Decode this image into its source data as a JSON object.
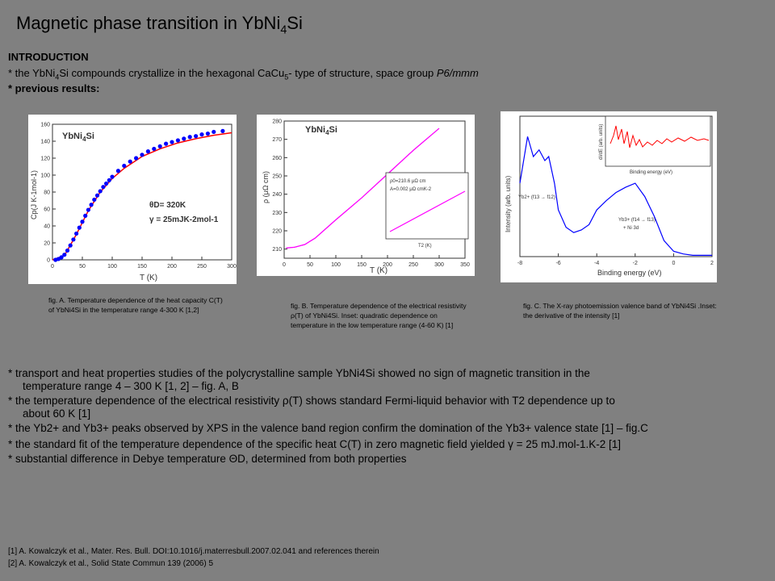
{
  "title": {
    "main": "Magnetic phase transition in YbNi",
    "sub": "4",
    "tail": "Si"
  },
  "intro": {
    "heading": "INTRODUCTION",
    "line1_a": "* the YbNi",
    "line1_sub": "4",
    "line1_b": "Si compounds crystallize in the hexagonal CaCu",
    "line1_sub2": "5",
    "line1_c": "- type of structure, space group ",
    "line1_d": "P6/mmm",
    "line2": "* previous results:"
  },
  "figA": {
    "caption": "fig. A. Temperature dependence of the heat capacity C(T) of YbNi4Si in the temperature range 4-300 K [1,2]",
    "label": "YbNi4Si",
    "ann1": "θD= 320K",
    "ann2": "γ = 25mJK-2mol-1",
    "xlabel": "T (K)",
    "ylabel": "Cp(J K-1mol-1)"
  },
  "figB": {
    "caption": "fig. B. Temperature dependence of the electrical resistivity ρ(T) of YbNi4Si. Inset: quadratic dependence on temperature in the low temperature range (4-60 K) [1]",
    "label": "YbNi4Si",
    "xlabel": "T (K)",
    "ylabel": "ρ (μΩ cm)",
    "inset1": "ρ0=210.6 μΩ cm",
    "inset2": "A=0.002 μΩ cmK-2",
    "inset_x": "T2 (K)",
    "inset_y": "ρ (μΩ cm)"
  },
  "figC": {
    "caption": "fig. C. The X-ray photoemission valence band of YbNi4Si .Inset: the derivative of the intensity [1]",
    "xlabel": "Binding energy (eV)",
    "ylabel": "Intensity (arb. units)",
    "inset_x": "Binding energy (eV)",
    "inset_y": "dI/dE (arb. units)",
    "ann1": "Yb2+ (f13 → f12)",
    "ann2": "Yb3+ (f14 → f13)",
    "ann3": "+ Ni 3d"
  },
  "bullets": [
    "* transport and heat properties studies of the polycrystalline sample YbNi4Si showed no sign of magnetic transition in the",
    "temperature range 4 – 300 K [1, 2] – fig. A, B",
    "* the temperature dependence of the electrical resistivity ρ(T) shows standard Fermi-liquid behavior with T2  dependence up to",
    "about 60 K [1]",
    "* the Yb2+ and Yb3+ peaks observed by XPS in the valence band region confirm the domination of the Yb3+ valence state [1] – fig.C",
    "* the standard fit of the temperature dependence of the specific heat C(T) in zero magnetic field yielded γ = 25 mJ.mol-1.K-2 [1]",
    "* substantial difference in Debye temperature ΘD, determined from both properties"
  ],
  "references": [
    "[1] A. Kowalczyk et al., Mater. Res. Bull. DOI:10.1016/j.materresbull.2007.02.041 and references therein",
    "[2] A. Kowalczyk et al., Solid State Commun 139 (2006) 5"
  ],
  "chart_data": [
    {
      "type": "scatter",
      "title": "YbNi4Si",
      "xlabel": "T (K)",
      "ylabel": "Cp(J K-1mol-1)",
      "xlim": [
        0,
        300
      ],
      "ylim": [
        0,
        160
      ],
      "xticks": [
        0,
        50,
        100,
        150,
        200,
        250,
        300
      ],
      "yticks": [
        0,
        20,
        40,
        60,
        80,
        100,
        120,
        140,
        160
      ],
      "series": [
        {
          "color": "#0000ff",
          "x": [
            5,
            10,
            15,
            20,
            25,
            30,
            35,
            40,
            45,
            50,
            55,
            60,
            65,
            70,
            75,
            80,
            85,
            90,
            95,
            100,
            110,
            120,
            130,
            140,
            150,
            160,
            170,
            180,
            190,
            200,
            210,
            220,
            230,
            240,
            250,
            260,
            270,
            285
          ],
          "y": [
            0,
            1,
            3,
            6,
            11,
            17,
            24,
            31,
            38,
            45,
            52,
            59,
            65,
            71,
            76,
            81,
            86,
            90,
            94,
            98,
            105,
            111,
            116,
            120,
            124,
            128,
            131,
            134,
            137,
            139,
            141,
            143,
            145,
            146,
            148,
            149,
            151,
            152
          ]
        },
        {
          "color": "#ff0000",
          "x": [
            0,
            20,
            40,
            60,
            80,
            100,
            120,
            150,
            180,
            210,
            240,
            270,
            300
          ],
          "y": [
            0,
            5,
            30,
            58,
            80,
            96,
            108,
            122,
            131,
            138,
            143,
            147,
            150
          ]
        }
      ]
    },
    {
      "type": "line",
      "title": "YbNi4Si",
      "xlabel": "T (K)",
      "ylabel": "ρ (μΩ cm)",
      "xlim": [
        0,
        350
      ],
      "ylim": [
        205,
        280
      ],
      "xticks": [
        0,
        50,
        100,
        150,
        200,
        250,
        300,
        350
      ],
      "yticks": [
        210,
        220,
        230,
        240,
        250,
        260,
        270,
        280
      ],
      "series": [
        {
          "color": "#ff00ff",
          "x": [
            4,
            20,
            40,
            60,
            80,
            100,
            150,
            200,
            250,
            300
          ],
          "y": [
            210.6,
            211,
            212.5,
            216,
            221,
            226,
            238,
            251,
            264,
            276
          ]
        }
      ]
    },
    {
      "type": "line",
      "title": "",
      "xlabel": "Binding energy (eV)",
      "ylabel": "Intensity (arb. units)",
      "xlim": [
        -8,
        2
      ],
      "xticks": [
        -8,
        -6,
        -4,
        -2,
        0,
        2
      ],
      "series": [
        {
          "color": "#0000ff",
          "x": [
            -8,
            -7.6,
            -7.3,
            -7,
            -6.7,
            -6.5,
            -6.2,
            -6,
            -5.6,
            -5.2,
            -4.8,
            -4.4,
            -4,
            -3.5,
            -3,
            -2.5,
            -2,
            -1.5,
            -1,
            -0.5,
            0,
            0.5,
            1,
            2
          ],
          "y": [
            0.55,
            0.9,
            0.75,
            0.8,
            0.72,
            0.75,
            0.55,
            0.35,
            0.22,
            0.18,
            0.2,
            0.24,
            0.35,
            0.42,
            0.48,
            0.52,
            0.55,
            0.45,
            0.3,
            0.12,
            0.04,
            0.02,
            0.01,
            0.01
          ]
        }
      ]
    }
  ]
}
